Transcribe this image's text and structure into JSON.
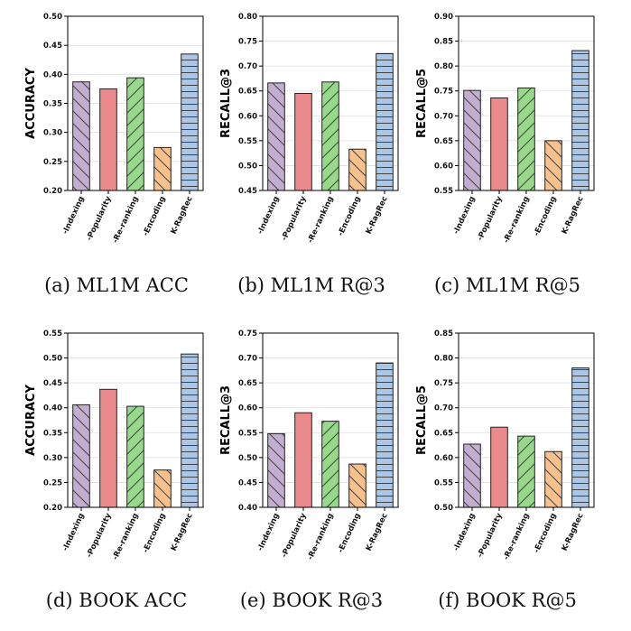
{
  "chart_data": [
    {
      "type": "bar",
      "caption": "(a)  ML1M ACC",
      "categories": [
        "-Indexing",
        "-Popularity",
        "-Re-ranking",
        "-Encoding",
        "K-RagRec"
      ],
      "values": [
        0.387,
        0.375,
        0.394,
        0.274,
        0.435
      ],
      "ylabel": "ACCURACY",
      "ylim": [
        0.2,
        0.5
      ],
      "yticks": [
        "0.20",
        "0.25",
        "0.30",
        "0.35",
        "0.40",
        "0.45",
        "0.50"
      ],
      "grid": true
    },
    {
      "type": "bar",
      "caption": "(b)  ML1M R@3",
      "categories": [
        "-Indexing",
        "-Popularity",
        "-Re-ranking",
        "-Encoding",
        "K-RagRec"
      ],
      "values": [
        0.666,
        0.645,
        0.668,
        0.533,
        0.725
      ],
      "ylabel": "RECALL@3",
      "ylim": [
        0.45,
        0.8
      ],
      "yticks": [
        "0.45",
        "0.50",
        "0.55",
        "0.60",
        "0.65",
        "0.70",
        "0.75",
        "0.80"
      ],
      "grid": true
    },
    {
      "type": "bar",
      "caption": "(c)  ML1M R@5",
      "categories": [
        "-Indexing",
        "-Popularity",
        "-Re-ranking",
        "-Encoding",
        "K-RagRec"
      ],
      "values": [
        0.751,
        0.736,
        0.756,
        0.65,
        0.831
      ],
      "ylabel": "RECALL@5",
      "ylim": [
        0.55,
        0.9
      ],
      "yticks": [
        "0.55",
        "0.60",
        "0.65",
        "0.70",
        "0.75",
        "0.80",
        "0.85",
        "0.90"
      ],
      "grid": true
    },
    {
      "type": "bar",
      "caption": "(d)  BOOK ACC",
      "categories": [
        "-Indexing",
        "-Popularity",
        "-Re-ranking",
        "-Encoding",
        "K-RagRec"
      ],
      "values": [
        0.406,
        0.437,
        0.403,
        0.275,
        0.508
      ],
      "ylabel": "ACCURACY",
      "ylim": [
        0.2,
        0.55
      ],
      "yticks": [
        "0.20",
        "0.25",
        "0.30",
        "0.35",
        "0.40",
        "0.45",
        "0.50",
        "0.55"
      ],
      "grid": true
    },
    {
      "type": "bar",
      "caption": "(e)  BOOK R@3",
      "categories": [
        "-Indexing",
        "-Popularity",
        "-Re-ranking",
        "-Encoding",
        "K-RagRec"
      ],
      "values": [
        0.548,
        0.59,
        0.573,
        0.487,
        0.69
      ],
      "ylabel": "RECALL@3",
      "ylim": [
        0.4,
        0.75
      ],
      "yticks": [
        "0.40",
        "0.45",
        "0.50",
        "0.55",
        "0.60",
        "0.65",
        "0.70",
        "0.75"
      ],
      "grid": true
    },
    {
      "type": "bar",
      "caption": "(f)  BOOK R@5",
      "categories": [
        "-Indexing",
        "-Popularity",
        "-Re-ranking",
        "-Encoding",
        "K-RagRec"
      ],
      "values": [
        0.627,
        0.661,
        0.643,
        0.612,
        0.78
      ],
      "ylabel": "RECALL@5",
      "ylim": [
        0.5,
        0.85
      ],
      "yticks": [
        "0.50",
        "0.55",
        "0.60",
        "0.65",
        "0.70",
        "0.75",
        "0.80",
        "0.85"
      ],
      "grid": true
    }
  ],
  "colors": {
    "bar_fills": [
      "#c3aed2",
      "#ea8a8c",
      "#98d88b",
      "#f8c08a",
      "#acc6e5"
    ],
    "hatch": "#444444",
    "hatch_patterns": [
      "backslash",
      "none",
      "slash",
      "backslash",
      "horizontal"
    ]
  }
}
